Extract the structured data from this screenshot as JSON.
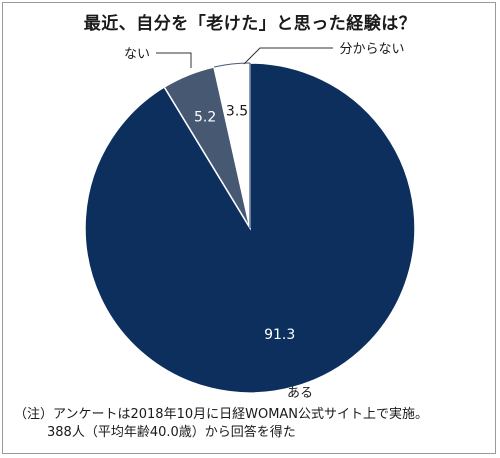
{
  "chart_data": {
    "type": "pie",
    "title": "最近、自分を「老けた」と思った経験は？",
    "slices": [
      {
        "label": "ある",
        "value": 91.3,
        "value_label": "91.3"
      },
      {
        "label": "ない",
        "value": 5.2,
        "value_label": "5.2"
      },
      {
        "label": "分からない",
        "value": 3.5,
        "value_label": "3.5"
      }
    ],
    "colors": [
      "#0c2f5e",
      "#475873",
      "#ffffff"
    ],
    "start": "12 o'clock, clockwise"
  },
  "note": {
    "line1": "（注）アンケートは2018年10月に日経WOMAN公式サイト上で実施。",
    "line2": "388人（平均年齢40.0歳）から回答を得た"
  }
}
